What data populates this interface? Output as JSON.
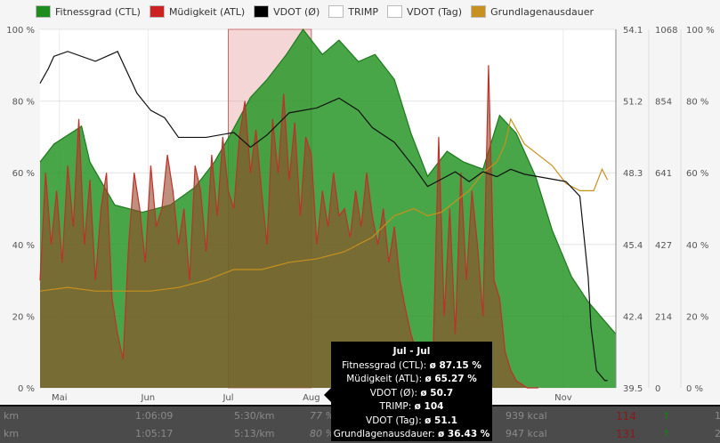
{
  "chart_data": {
    "type": "area",
    "legend": [
      {
        "name": "Fitnessgrad (CTL)",
        "color": "#1e8c1e"
      },
      {
        "name": "Müdigkeit (ATL)",
        "color": "#cc2222"
      },
      {
        "name": "VDOT (Ø)",
        "color": "#000000"
      },
      {
        "name": "TRIMP",
        "color": "#ffffff"
      },
      {
        "name": "VDOT (Tag)",
        "color": "#ffffff"
      },
      {
        "name": "Grundlagenausdauer",
        "color": "#c8901e"
      }
    ],
    "legend_position": "top",
    "x_ticks": [
      {
        "label": "Mai",
        "day": 7
      },
      {
        "label": "Jun",
        "day": 39
      },
      {
        "label": "Jul",
        "day": 68
      },
      {
        "label": "Aug",
        "day": 98
      },
      {
        "label": "Nov",
        "day": 189
      }
    ],
    "xlim": [
      0,
      208
    ],
    "y_left": {
      "ticks": [
        "0 %",
        "20 %",
        "40 %",
        "60 %",
        "80 %",
        "100 %"
      ],
      "range": [
        0,
        100
      ]
    },
    "y_vdot": {
      "ticks": [
        "39.5",
        "42.4",
        "45.4",
        "48.3",
        "51.2",
        "54.1"
      ],
      "range": [
        39.5,
        54.1
      ]
    },
    "y_trimp": {
      "ticks": [
        "0",
        "214",
        "427",
        "641",
        "854",
        "1068"
      ],
      "range": [
        0,
        1068
      ]
    },
    "y_right": {
      "ticks": [
        "0 %",
        "20 %",
        "40 %",
        "60 %",
        "80 %",
        "100 %"
      ],
      "range": [
        0,
        100
      ]
    },
    "highlight": {
      "from_day": 68,
      "to_day": 98,
      "label": "Jul - Jul"
    },
    "ctl": {
      "x": [
        0,
        5,
        15,
        18,
        27,
        37,
        47,
        56,
        63,
        69,
        76,
        82,
        89,
        95,
        102,
        108,
        115,
        121,
        128,
        134,
        140,
        147,
        153,
        160,
        166,
        172,
        179,
        185,
        192,
        198,
        208
      ],
      "y": [
        63,
        68,
        73,
        63,
        51,
        49,
        51,
        56,
        63,
        71,
        81,
        86,
        93,
        100,
        93,
        97,
        91,
        93,
        86,
        71,
        59,
        66,
        63,
        61,
        76,
        71,
        59,
        44,
        31,
        24,
        15
      ]
    },
    "atl": {
      "x": [
        0,
        2,
        4,
        6,
        8,
        10,
        12,
        14,
        16,
        18,
        20,
        22,
        24,
        26,
        28,
        30,
        32,
        34,
        36,
        38,
        40,
        42,
        44,
        46,
        48,
        50,
        52,
        54,
        56,
        58,
        60,
        62,
        64,
        66,
        68,
        70,
        72,
        74,
        76,
        78,
        80,
        82,
        84,
        86,
        88,
        90,
        92,
        94,
        96,
        98,
        100,
        102,
        104,
        106,
        108,
        110,
        112,
        114,
        116,
        118,
        120,
        122,
        124,
        126,
        128,
        130,
        132,
        134,
        136,
        138,
        140,
        142,
        144,
        146,
        148,
        150,
        152,
        154,
        156,
        158,
        160,
        162,
        164,
        166,
        168,
        170,
        172,
        174,
        176,
        178,
        180
      ],
      "y": [
        30,
        60,
        40,
        55,
        35,
        62,
        45,
        75,
        40,
        58,
        30,
        50,
        60,
        25,
        15,
        8,
        40,
        60,
        50,
        35,
        62,
        45,
        50,
        65,
        55,
        40,
        50,
        30,
        62,
        55,
        38,
        65,
        48,
        70,
        55,
        50,
        70,
        80,
        60,
        72,
        55,
        40,
        75,
        60,
        82,
        58,
        74,
        48,
        70,
        65,
        40,
        55,
        45,
        60,
        48,
        50,
        42,
        55,
        45,
        60,
        48,
        40,
        50,
        35,
        45,
        30,
        22,
        15,
        10,
        8,
        6,
        10,
        70,
        20,
        50,
        15,
        60,
        30,
        55,
        40,
        20,
        90,
        30,
        25,
        10,
        5,
        2,
        1,
        0,
        0,
        0
      ]
    },
    "vdot_avg": {
      "x": [
        0,
        3,
        5,
        10,
        20,
        28,
        35,
        40,
        45,
        50,
        60,
        70,
        76,
        82,
        90,
        100,
        108,
        115,
        120,
        128,
        135,
        140,
        145,
        150,
        155,
        160,
        165,
        170,
        175,
        180,
        185,
        190,
        195,
        198,
        199,
        201,
        204,
        205
      ],
      "y": [
        51.9,
        52.5,
        53.0,
        53.2,
        52.8,
        53.2,
        51.5,
        50.8,
        50.5,
        49.7,
        49.7,
        49.9,
        49.3,
        49.8,
        50.7,
        50.9,
        51.3,
        50.8,
        50.1,
        49.5,
        48.5,
        47.7,
        48.0,
        48.3,
        47.9,
        48.3,
        48.1,
        48.4,
        48.2,
        48.1,
        48.0,
        47.9,
        47.3,
        44.0,
        42.0,
        40.2,
        39.8,
        39.8
      ]
    },
    "grundlagenausdauer": {
      "x": [
        0,
        10,
        20,
        40,
        50,
        60,
        70,
        80,
        90,
        100,
        110,
        120,
        128,
        135,
        140,
        145,
        150,
        155,
        160,
        165,
        168,
        170,
        175,
        180,
        185,
        190,
        195,
        200,
        203,
        205
      ],
      "y": [
        27,
        28,
        27,
        27,
        28,
        30,
        33,
        33,
        35,
        36,
        38,
        42,
        48,
        50,
        48,
        49,
        52,
        55,
        60,
        63,
        68,
        75,
        68,
        65,
        62,
        57,
        55,
        55,
        61,
        58
      ]
    }
  },
  "tooltip": {
    "title": "Jul - Jul",
    "lines": [
      {
        "label": "Fitnessgrad (CTL):",
        "value": "ø 87.15 %"
      },
      {
        "label": "Müdigkeit (ATL):",
        "value": "ø 65.27 %"
      },
      {
        "label": "VDOT (Ø):",
        "value": "ø 50.7"
      },
      {
        "label": "TRIMP:",
        "value": "ø 104"
      },
      {
        "label": "VDOT (Tag):",
        "value": "ø 51.1"
      },
      {
        "label": "Grundlagenausdauer:",
        "value": "ø 36.43 %"
      }
    ]
  },
  "table": {
    "rows": [
      {
        "dist": "km",
        "time": "1:06:09",
        "pace": "5:30/km",
        "pct": "77 %",
        "kcal": "939 kcal",
        "trimp": "114",
        "trend": "↑",
        "extra": "1"
      },
      {
        "dist": "km",
        "time": "1:05:17",
        "pace": "5:13/km",
        "pct": "80 %",
        "kcal": "947 kcal",
        "trimp": "131",
        "trend": "↑",
        "extra": "2"
      }
    ]
  }
}
